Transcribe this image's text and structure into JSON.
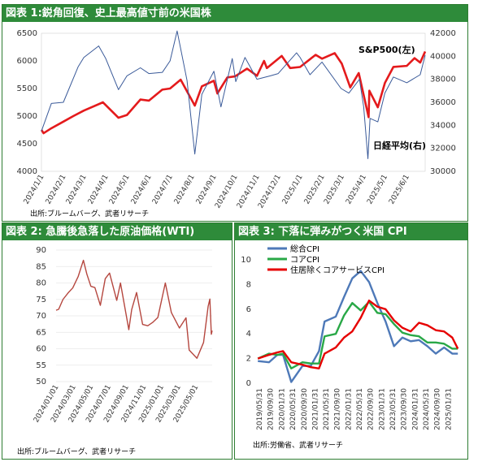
{
  "panels": {
    "p1": {
      "title": "図表 1:鋭角回復、史上最高値寸前の米国株",
      "source": "出所:ブルームバーグ、武者リサーチ"
    },
    "p2": {
      "title": "図表 2: 急騰後急落した原油価格(WTI)",
      "source": "出所:ブルームバーグ、武者リサーチ"
    },
    "p3": {
      "title": "図表 3: 下落に弾みがつく米国 CPI",
      "source": "出所:労働省、武者リサーチ"
    }
  },
  "chart_data": [
    {
      "type": "line",
      "title": "",
      "x_labels": [
        "2024/1/1",
        "2024/2/1",
        "2024/3/1",
        "2024/4/1",
        "2024/5/1",
        "2024/6/1",
        "2024/7/1",
        "2024/8/1",
        "2024/9/1",
        "2024/10/1",
        "2024/11/1",
        "2024/12/1",
        "2025/1/1",
        "2025/2/1",
        "2025/3/1",
        "2025/4/1",
        "2025/5/1",
        "2025/6/1"
      ],
      "y_left": {
        "ticks": [
          "4000",
          "4500",
          "5000",
          "5500",
          "6000",
          "6500"
        ],
        "lim": [
          4000,
          6500
        ]
      },
      "y_right": {
        "ticks": [
          "30000",
          "32000",
          "34000",
          "36000",
          "38000",
          "40000",
          "42000"
        ],
        "lim": [
          30000,
          42000
        ]
      },
      "annotations": [
        "S&P500(左)",
        "日経平均(右)"
      ],
      "series": [
        {
          "name": "S&P500(左)",
          "axis": "left",
          "color": "#e41a1c",
          "points": [
            [
              "2024/1/1",
              4750
            ],
            [
              "2024/1/4",
              4690
            ],
            [
              "2024/1/15",
              4780
            ],
            [
              "2024/2/1",
              4900
            ],
            [
              "2024/2/15",
              5000
            ],
            [
              "2024/3/1",
              5100
            ],
            [
              "2024/3/28",
              5250
            ],
            [
              "2024/4/19",
              4970
            ],
            [
              "2024/5/1",
              5020
            ],
            [
              "2024/5/20",
              5300
            ],
            [
              "2024/6/1",
              5280
            ],
            [
              "2024/6/20",
              5480
            ],
            [
              "2024/7/1",
              5500
            ],
            [
              "2024/7/16",
              5660
            ],
            [
              "2024/8/5",
              5190
            ],
            [
              "2024/8/15",
              5540
            ],
            [
              "2024/9/1",
              5640
            ],
            [
              "2024/9/6",
              5410
            ],
            [
              "2024/9/20",
              5700
            ],
            [
              "2024/10/1",
              5720
            ],
            [
              "2024/10/18",
              5860
            ],
            [
              "2024/11/1",
              5730
            ],
            [
              "2024/11/11",
              6000
            ],
            [
              "2024/11/15",
              5870
            ],
            [
              "2024/12/6",
              6090
            ],
            [
              "2024/12/18",
              5870
            ],
            [
              "2025/1/1",
              5890
            ],
            [
              "2025/1/23",
              6110
            ],
            [
              "2025/2/1",
              6040
            ],
            [
              "2025/2/19",
              6140
            ],
            [
              "2025/3/1",
              5950
            ],
            [
              "2025/3/13",
              5520
            ],
            [
              "2025/3/25",
              5780
            ],
            [
              "2025/4/8",
              4980
            ],
            [
              "2025/4/9",
              5460
            ],
            [
              "2025/4/21",
              5160
            ],
            [
              "2025/5/1",
              5600
            ],
            [
              "2025/5/13",
              5890
            ],
            [
              "2025/6/1",
              5910
            ],
            [
              "2025/6/12",
              6050
            ],
            [
              "2025/6/20",
              5970
            ],
            [
              "2025/6/27",
              6170
            ]
          ]
        },
        {
          "name": "日経平均(右)",
          "axis": "right",
          "color": "#3a5a99",
          "points": [
            [
              "2024/1/1",
              33500
            ],
            [
              "2024/1/15",
              35900
            ],
            [
              "2024/2/1",
              36000
            ],
            [
              "2024/2/22",
              39100
            ],
            [
              "2024/3/1",
              39900
            ],
            [
              "2024/3/22",
              40900
            ],
            [
              "2024/4/1",
              39800
            ],
            [
              "2024/4/19",
              37100
            ],
            [
              "2024/5/1",
              38300
            ],
            [
              "2024/5/20",
              39000
            ],
            [
              "2024/6/1",
              38500
            ],
            [
              "2024/6/20",
              38600
            ],
            [
              "2024/7/1",
              39600
            ],
            [
              "2024/7/11",
              42200
            ],
            [
              "2024/7/25",
              37900
            ],
            [
              "2024/8/5",
              31500
            ],
            [
              "2024/8/15",
              36700
            ],
            [
              "2024/9/1",
              38700
            ],
            [
              "2024/9/11",
              35600
            ],
            [
              "2024/9/27",
              39800
            ],
            [
              "2024/10/2",
              37800
            ],
            [
              "2024/10/15",
              39900
            ],
            [
              "2024/11/1",
              38000
            ],
            [
              "2024/11/20",
              38300
            ],
            [
              "2024/12/1",
              38500
            ],
            [
              "2024/12/27",
              40300
            ],
            [
              "2025/1/1",
              39900
            ],
            [
              "2025/1/15",
              38400
            ],
            [
              "2025/2/1",
              39500
            ],
            [
              "2025/2/28",
              37200
            ],
            [
              "2025/3/11",
              36800
            ],
            [
              "2025/3/26",
              38000
            ],
            [
              "2025/4/1",
              35600
            ],
            [
              "2025/4/7",
              31100
            ],
            [
              "2025/4/10",
              34600
            ],
            [
              "2025/4/21",
              34300
            ],
            [
              "2025/5/1",
              36800
            ],
            [
              "2025/5/13",
              38200
            ],
            [
              "2025/6/1",
              37700
            ],
            [
              "2025/6/20",
              38400
            ],
            [
              "2025/6/27",
              40100
            ]
          ]
        }
      ]
    },
    {
      "type": "line",
      "title": "",
      "x_labels": [
        "2024/01/01",
        "2024/03/01",
        "2024/05/01",
        "2024/07/01",
        "2024/09/01",
        "2024/11/01",
        "2025/01/01",
        "2025/03/01",
        "2025/05/01"
      ],
      "y_ticks": [
        "50",
        "55",
        "60",
        "65",
        "70",
        "75",
        "80",
        "85",
        "90"
      ],
      "ylim": [
        50,
        90
      ],
      "series": [
        {
          "name": "WTI",
          "color": "#b5473f",
          "points": [
            [
              "2024/01/01",
              71.7
            ],
            [
              "2024/01/10",
              72.0
            ],
            [
              "2024/01/25",
              75.0
            ],
            [
              "2024/02/12",
              77.0
            ],
            [
              "2024/02/28",
              78.5
            ],
            [
              "2024/03/18",
              82.0
            ],
            [
              "2024/04/05",
              86.9
            ],
            [
              "2024/04/17",
              82.7
            ],
            [
              "2024/05/01",
              79.0
            ],
            [
              "2024/05/15",
              78.6
            ],
            [
              "2024/06/03",
              73.2
            ],
            [
              "2024/06/20",
              81.3
            ],
            [
              "2024/07/05",
              83.0
            ],
            [
              "2024/07/30",
              74.7
            ],
            [
              "2024/08/12",
              80.0
            ],
            [
              "2024/09/10",
              65.8
            ],
            [
              "2024/09/20",
              71.9
            ],
            [
              "2024/10/07",
              77.1
            ],
            [
              "2024/10/28",
              67.4
            ],
            [
              "2024/11/15",
              67.0
            ],
            [
              "2024/12/02",
              68.0
            ],
            [
              "2024/12/20",
              69.5
            ],
            [
              "2025/01/15",
              80.0
            ],
            [
              "2025/02/05",
              71.0
            ],
            [
              "2025/03/05",
              66.3
            ],
            [
              "2025/03/28",
              69.4
            ],
            [
              "2025/04/08",
              59.6
            ],
            [
              "2025/05/05",
              57.1
            ],
            [
              "2025/05/28",
              61.9
            ],
            [
              "2025/06/13",
              72.9
            ],
            [
              "2025/06/19",
              75.1
            ],
            [
              "2025/06/24",
              64.4
            ],
            [
              "2025/06/27",
              65.5
            ]
          ]
        }
      ]
    },
    {
      "type": "line",
      "title": "",
      "x_labels": [
        "2019/05/31",
        "2019/09/30",
        "2020/01/31",
        "2020/05/31",
        "2020/09/30",
        "2021/01/31",
        "2021/05/31",
        "2021/09/30",
        "2022/01/31",
        "2022/05/31",
        "2022/09/30",
        "2023/01/31",
        "2023/05/31",
        "2023/09/30",
        "2024/01/31",
        "2024/05/31",
        "2024/09/30",
        "2025/01/31"
      ],
      "y_ticks": [
        "0",
        "2",
        "4",
        "6",
        "8",
        "10"
      ],
      "ylim": [
        0,
        10
      ],
      "legend": [
        "総合CPI",
        "コアCPI",
        "住居除くコアサービスCPI"
      ],
      "series": [
        {
          "name": "総合CPI",
          "color": "#4e79b8",
          "points": [
            [
              "2019/05",
              1.8
            ],
            [
              "2019/09",
              1.7
            ],
            [
              "2019/12",
              2.3
            ],
            [
              "2020/02",
              2.3
            ],
            [
              "2020/05",
              0.1
            ],
            [
              "2020/09",
              1.4
            ],
            [
              "2020/12",
              1.4
            ],
            [
              "2021/03",
              2.6
            ],
            [
              "2021/05",
              5.0
            ],
            [
              "2021/09",
              5.4
            ],
            [
              "2021/12",
              7.0
            ],
            [
              "2022/03",
              8.5
            ],
            [
              "2022/06",
              9.1
            ],
            [
              "2022/09",
              8.2
            ],
            [
              "2022/12",
              6.5
            ],
            [
              "2023/03",
              5.0
            ],
            [
              "2023/06",
              3.0
            ],
            [
              "2023/09",
              3.7
            ],
            [
              "2023/12",
              3.4
            ],
            [
              "2024/03",
              3.5
            ],
            [
              "2024/06",
              3.0
            ],
            [
              "2024/09",
              2.4
            ],
            [
              "2024/12",
              2.9
            ],
            [
              "2025/03",
              2.4
            ],
            [
              "2025/05",
              2.4
            ]
          ]
        },
        {
          "name": "コアCPI",
          "color": "#29a847",
          "points": [
            [
              "2019/05",
              2.0
            ],
            [
              "2019/09",
              2.4
            ],
            [
              "2019/12",
              2.3
            ],
            [
              "2020/02",
              2.4
            ],
            [
              "2020/05",
              1.2
            ],
            [
              "2020/09",
              1.7
            ],
            [
              "2020/12",
              1.6
            ],
            [
              "2021/03",
              1.6
            ],
            [
              "2021/05",
              3.8
            ],
            [
              "2021/09",
              4.0
            ],
            [
              "2021/12",
              5.5
            ],
            [
              "2022/03",
              6.5
            ],
            [
              "2022/06",
              5.9
            ],
            [
              "2022/09",
              6.6
            ],
            [
              "2022/12",
              5.7
            ],
            [
              "2023/03",
              5.6
            ],
            [
              "2023/06",
              4.8
            ],
            [
              "2023/09",
              4.1
            ],
            [
              "2023/12",
              3.9
            ],
            [
              "2024/03",
              3.8
            ],
            [
              "2024/06",
              3.3
            ],
            [
              "2024/09",
              3.3
            ],
            [
              "2024/12",
              3.2
            ],
            [
              "2025/03",
              2.8
            ],
            [
              "2025/05",
              2.8
            ]
          ]
        },
        {
          "name": "住居除くコアサービスCPI",
          "color": "#e60000",
          "points": [
            [
              "2019/05",
              2.0
            ],
            [
              "2019/09",
              2.3
            ],
            [
              "2019/12",
              2.5
            ],
            [
              "2020/02",
              2.6
            ],
            [
              "2020/05",
              1.7
            ],
            [
              "2020/09",
              1.5
            ],
            [
              "2020/12",
              1.3
            ],
            [
              "2021/03",
              1.2
            ],
            [
              "2021/05",
              2.4
            ],
            [
              "2021/09",
              2.9
            ],
            [
              "2021/12",
              3.7
            ],
            [
              "2022/03",
              4.2
            ],
            [
              "2022/06",
              5.3
            ],
            [
              "2022/09",
              6.7
            ],
            [
              "2022/12",
              6.2
            ],
            [
              "2023/03",
              6.0
            ],
            [
              "2023/06",
              5.1
            ],
            [
              "2023/09",
              4.5
            ],
            [
              "2023/12",
              4.2
            ],
            [
              "2024/03",
              4.9
            ],
            [
              "2024/06",
              4.7
            ],
            [
              "2024/09",
              4.3
            ],
            [
              "2024/12",
              4.2
            ],
            [
              "2025/03",
              3.7
            ],
            [
              "2025/05",
              2.8
            ]
          ]
        }
      ]
    }
  ]
}
